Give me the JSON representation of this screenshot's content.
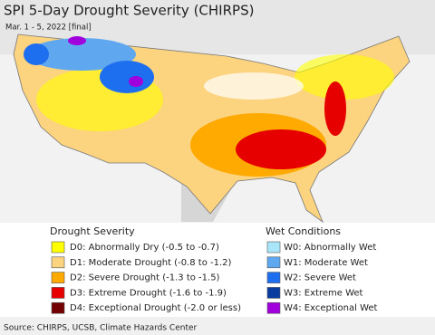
{
  "header": {
    "title": "SPI 5-Day Drought Severity (CHIRPS)",
    "subtitle": "Mar. 1 - 5, 2022 [final]"
  },
  "legend": {
    "drought": {
      "title": "Drought Severity",
      "items": [
        {
          "label": "D0: Abnormally Dry (-0.5 to -0.7)",
          "color": "#ffff00"
        },
        {
          "label": "D1: Moderate Drought (-0.8 to -1.2)",
          "color": "#fcd37f"
        },
        {
          "label": "D2: Severe Drought (-1.3 to -1.5)",
          "color": "#ffaa00"
        },
        {
          "label": "D3: Extreme Drought (-1.6 to -1.9)",
          "color": "#e60000"
        },
        {
          "label": "D4: Exceptional Drought (-2.0 or less)",
          "color": "#730000"
        }
      ]
    },
    "wet": {
      "title": "Wet Conditions",
      "items": [
        {
          "label": "W0: Abnormally Wet",
          "color": "#aae6fa"
        },
        {
          "label": "W1: Moderate Wet",
          "color": "#5fa8f0"
        },
        {
          "label": "W2: Severe Wet",
          "color": "#1e6ef0"
        },
        {
          "label": "W3: Extreme Wet",
          "color": "#0a3ca0"
        },
        {
          "label": "W4: Exceptional Wet",
          "color": "#a000dc"
        }
      ]
    }
  },
  "footer": {
    "source": "Source: CHIRPS, UCSB, Climate Hazards Center"
  }
}
